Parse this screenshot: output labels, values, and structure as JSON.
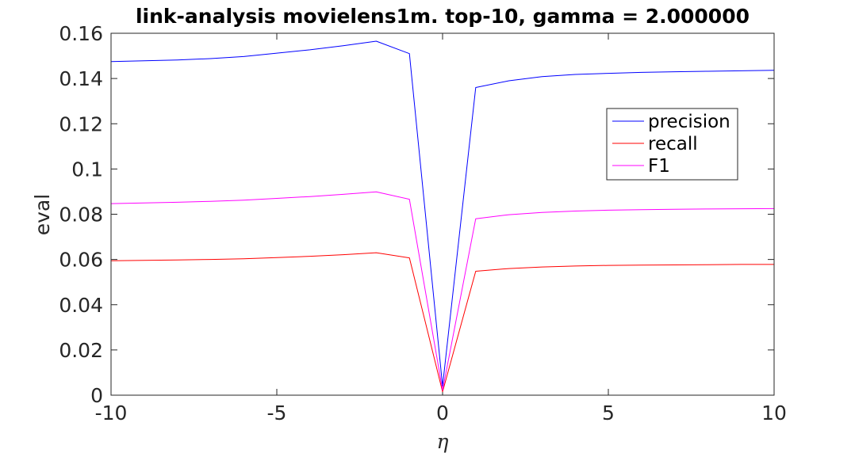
{
  "chart_data": {
    "type": "line",
    "title": "link-analysis movielens1m. top-10, gamma = 2.000000",
    "xlabel": "η",
    "ylabel": "eval",
    "xlim": [
      -10,
      10
    ],
    "ylim": [
      0,
      0.16
    ],
    "xticks": [
      "-10",
      "-5",
      "0",
      "5",
      "10"
    ],
    "yticks": [
      "0",
      "0.02",
      "0.04",
      "0.06",
      "0.08",
      "0.1",
      "0.12",
      "0.14",
      "0.16"
    ],
    "grid": false,
    "legend_position": "top-right",
    "x": [
      -10,
      -9,
      -8,
      -7,
      -6,
      -5,
      -4,
      -3,
      -2,
      -1,
      0,
      1,
      2,
      3,
      4,
      5,
      6,
      7,
      8,
      9,
      10
    ],
    "series": [
      {
        "name": "precision",
        "color": "#0000ff",
        "values": [
          0.1475,
          0.1478,
          0.1482,
          0.1488,
          0.1497,
          0.1512,
          0.1527,
          0.1545,
          0.1565,
          0.151,
          0.004,
          0.136,
          0.139,
          0.1408,
          0.1418,
          0.1423,
          0.1427,
          0.143,
          0.1432,
          0.1434,
          0.1436
        ]
      },
      {
        "name": "recall",
        "color": "#ff0000",
        "values": [
          0.0594,
          0.0596,
          0.0598,
          0.06,
          0.0603,
          0.0608,
          0.0614,
          0.0621,
          0.063,
          0.0607,
          0.0015,
          0.0548,
          0.056,
          0.0567,
          0.0571,
          0.0574,
          0.0575,
          0.0576,
          0.0577,
          0.0578,
          0.0578
        ]
      },
      {
        "name": "F1",
        "color": "#ff00ff",
        "values": [
          0.0847,
          0.085,
          0.0853,
          0.0857,
          0.0862,
          0.087,
          0.0878,
          0.0888,
          0.0899,
          0.0866,
          0.0022,
          0.078,
          0.0798,
          0.0808,
          0.0814,
          0.0818,
          0.082,
          0.0822,
          0.0823,
          0.0824,
          0.0825
        ]
      }
    ]
  }
}
